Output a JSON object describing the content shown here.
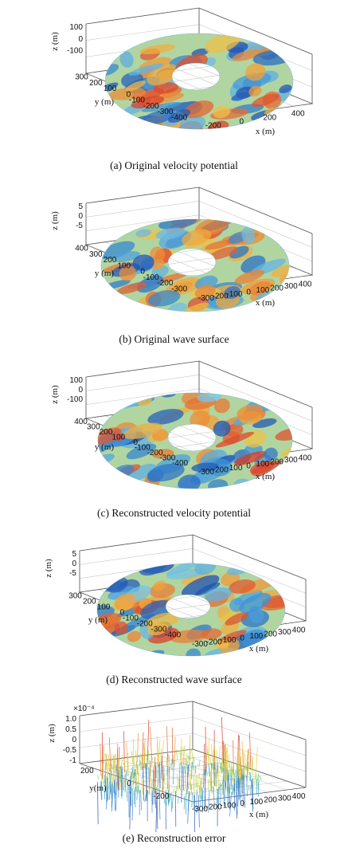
{
  "chart_data": [
    {
      "type": "surface3d",
      "caption": "(a) Original velocity potential",
      "xlabel": "x (m)",
      "ylabel": "y (m)",
      "zlabel": "z (m)",
      "xticks": [
        "-200",
        "0",
        "200",
        "400"
      ],
      "yticks": [
        "300",
        "200",
        "100",
        "0",
        "-100",
        "-200",
        "-300",
        "-400"
      ],
      "zticks": [
        "100",
        "0",
        "-100"
      ],
      "xlim": [
        -400,
        400
      ],
      "ylim": [
        -400,
        400
      ],
      "zlim": [
        -100,
        100
      ],
      "colormap": [
        "#1f4fb0",
        "#3a8fd6",
        "#7cc7e8",
        "#e6e35a",
        "#f2a33a",
        "#d9372a"
      ],
      "colormap_top": "#d9372a",
      "colormap_bottom": "#1f4fb0"
    },
    {
      "type": "surface3d",
      "caption": "(b) Original wave surface",
      "xlabel": "x (m)",
      "ylabel": "y (m)",
      "zlabel": "z (m)",
      "xticks": [
        "-300",
        "-200",
        "-100",
        "0",
        "100",
        "200",
        "300",
        "400"
      ],
      "yticks": [
        "400",
        "300",
        "200",
        "100",
        "0",
        "-100",
        "-200",
        "-300"
      ],
      "zticks": [
        "5",
        "0",
        "-5"
      ],
      "xlim": [
        -300,
        400
      ],
      "ylim": [
        -300,
        400
      ],
      "zlim": [
        -5,
        5
      ],
      "colormap": [
        "#1f4fb0",
        "#3a8fd6",
        "#7cc7e8",
        "#e6e35a",
        "#f2a33a",
        "#d9372a"
      ]
    },
    {
      "type": "surface3d",
      "caption": "(c) Reconstructed velocity potential",
      "xlabel": "x (m)",
      "ylabel": "y (m)",
      "zlabel": "z (m)",
      "xticks": [
        "-300",
        "-200",
        "-100",
        "0",
        "100",
        "200",
        "300",
        "400"
      ],
      "yticks": [
        "400",
        "300",
        "200",
        "100",
        "0",
        "-100",
        "-200",
        "-300",
        "-400"
      ],
      "zticks": [
        "100",
        "0",
        "-100"
      ],
      "xlim": [
        -300,
        400
      ],
      "ylim": [
        -400,
        400
      ],
      "zlim": [
        -100,
        100
      ],
      "colormap": [
        "#1f4fb0",
        "#3a8fd6",
        "#7cc7e8",
        "#e6e35a",
        "#f2a33a",
        "#d9372a"
      ]
    },
    {
      "type": "surface3d",
      "caption": "(d) Reconstructed wave surface",
      "xlabel": "x (m)",
      "ylabel": "y (m)",
      "zlabel": "z (m)",
      "xticks": [
        "-300",
        "-200",
        "-100",
        "0",
        "100",
        "200",
        "300",
        "400"
      ],
      "yticks": [
        "300",
        "200",
        "100",
        "0",
        "-100",
        "-200",
        "-300",
        "-400"
      ],
      "zticks": [
        "5",
        "0",
        "-5"
      ],
      "xlim": [
        -300,
        400
      ],
      "ylim": [
        -400,
        300
      ],
      "zlim": [
        -5,
        5
      ],
      "colormap": [
        "#1f4fb0",
        "#3a8fd6",
        "#7cc7e8",
        "#e6e35a",
        "#f2a33a",
        "#d9372a"
      ]
    },
    {
      "type": "mesh3d",
      "caption": "(e) Reconstruction error",
      "xlabel": "x (m)",
      "ylabel": "y(m)",
      "zlabel": "z (m)",
      "xticks": [
        "-300",
        "-200",
        "-100",
        "0",
        "100",
        "200",
        "300",
        "400"
      ],
      "yticks": [
        "200",
        "0",
        "-200"
      ],
      "zticks": [
        "1.0",
        "0.5",
        "0",
        "-0.5",
        "-1"
      ],
      "zscale_label": "×10⁻⁴",
      "xlim": [
        -300,
        400
      ],
      "ylim": [
        -200,
        200
      ],
      "zlim": [
        -1.0,
        1.0
      ],
      "colormap": [
        "#1f4fb0",
        "#3a8fd6",
        "#3fb8b0",
        "#9bd35a",
        "#f2d13a",
        "#d9372a"
      ]
    }
  ]
}
